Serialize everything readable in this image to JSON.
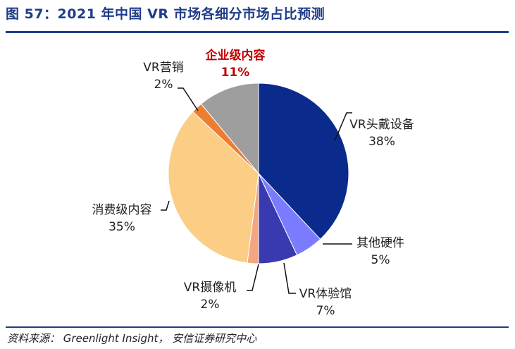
{
  "figure": {
    "title": "图 57：2021 年中国 VR 市场各细分市场占比预测",
    "source": "资料来源： Greenlight Insight， 安信证券研究中心"
  },
  "chart_data": {
    "type": "pie",
    "slices": [
      {
        "name": "VR头戴设备",
        "value": 38,
        "label": "38%",
        "color": "#0a2b8c"
      },
      {
        "name": "其他硬件",
        "value": 5,
        "label": "5%",
        "color": "#7b7bff"
      },
      {
        "name": "VR体验馆",
        "value": 7,
        "label": "7%",
        "color": "#3a3ab0"
      },
      {
        "name": "VR摄像机",
        "value": 2,
        "label": "2%",
        "color": "#f4a582"
      },
      {
        "name": "消费级内容",
        "value": 35,
        "label": "35%",
        "color": "#fbcd85"
      },
      {
        "name": "VR营销",
        "value": 2,
        "label": "2%",
        "color": "#ed7d31"
      },
      {
        "name": "企业级内容",
        "value": 11,
        "label": "11%",
        "color": "#9e9e9e",
        "highlight": true
      }
    ]
  }
}
